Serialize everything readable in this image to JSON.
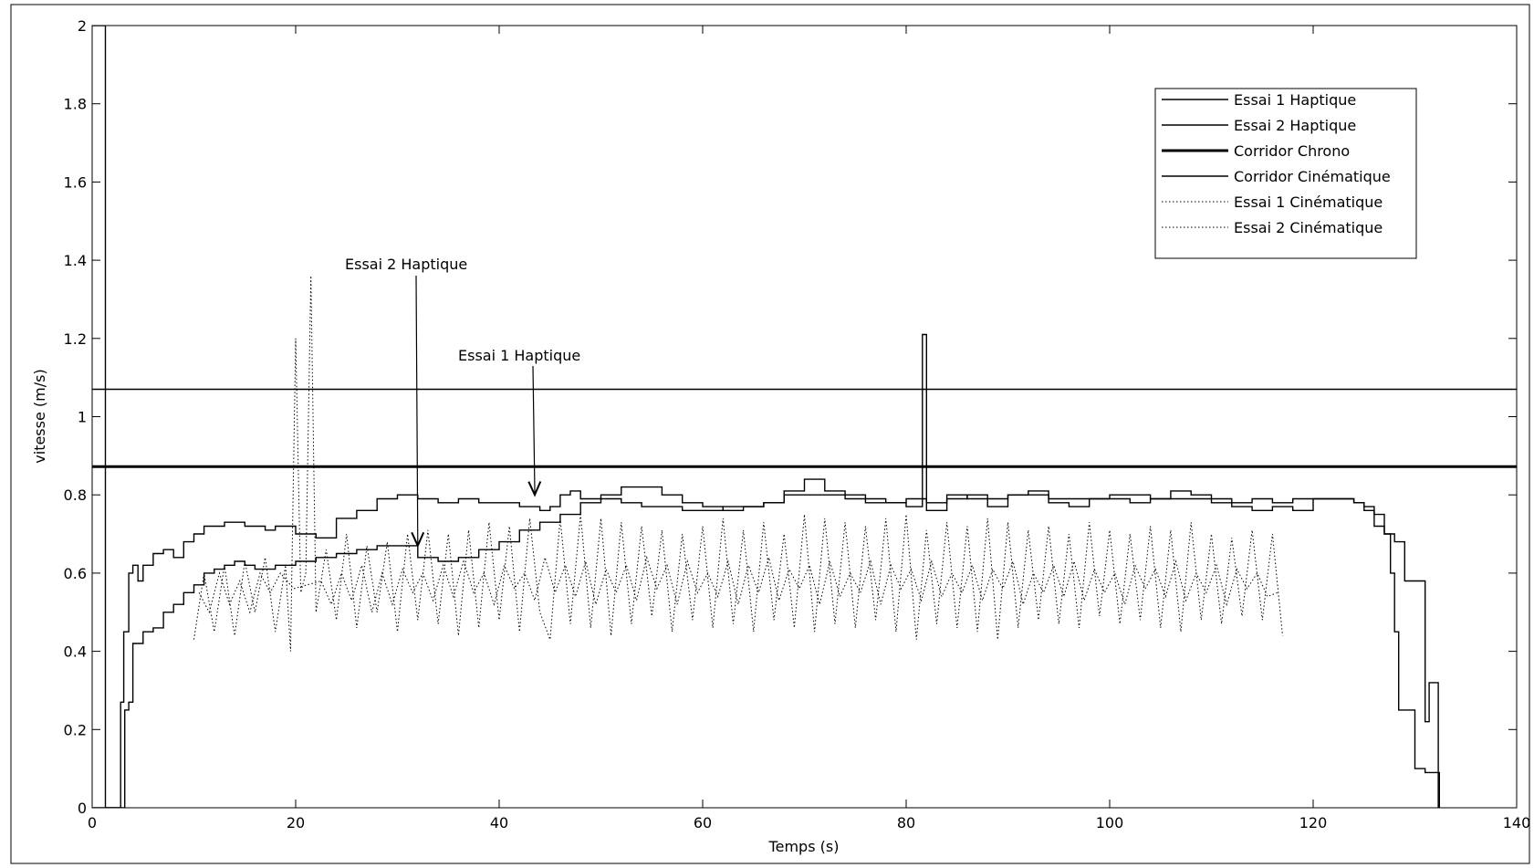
{
  "chart_data": {
    "type": "line",
    "title": "",
    "xlabel": "Temps (s)",
    "ylabel": "vitesse (m/s)",
    "xlim": [
      0,
      140
    ],
    "ylim": [
      0,
      2
    ],
    "xticks": [
      0,
      20,
      40,
      60,
      80,
      100,
      120,
      140
    ],
    "xtick_labels": [
      "0",
      "20",
      "40",
      "60",
      "80",
      "100",
      "120",
      "140"
    ],
    "yticks": [
      0,
      0.2,
      0.4,
      0.6,
      0.8,
      1,
      1.2,
      1.4,
      1.6,
      1.8,
      2
    ],
    "ytick_labels": [
      "0",
      "0.2",
      "0.4",
      "0.6",
      "0.8",
      "1",
      "1.2",
      "1.4",
      "1.6",
      "1.8",
      "2"
    ],
    "grid": false,
    "legend_position": "top-right",
    "series": [
      {
        "name": "Essai  1 Haptique",
        "style": "solid",
        "x": [
          0,
          1.2,
          1.3,
          2.6,
          2.8,
          3.1,
          3.6,
          4,
          4.5,
          5,
          6,
          7,
          8,
          9,
          10,
          11,
          12,
          13,
          14,
          15,
          16,
          17,
          18,
          19,
          20,
          22,
          24,
          26,
          28,
          30,
          32,
          34,
          36,
          38,
          40,
          42,
          44,
          45,
          46,
          47,
          48,
          50,
          52,
          54,
          56,
          58,
          60,
          62,
          64,
          66,
          68,
          70,
          72,
          74,
          76,
          78,
          80,
          82,
          84,
          86,
          88,
          90,
          92,
          94,
          96,
          98,
          100,
          102,
          104,
          106,
          108,
          110,
          112,
          114,
          116,
          118,
          120,
          122,
          124,
          125,
          126,
          127,
          127.6,
          128,
          128.4,
          129,
          130,
          131,
          132,
          132.4
        ],
        "y": [
          2,
          2,
          0,
          0,
          0.27,
          0.45,
          0.6,
          0.62,
          0.58,
          0.62,
          0.65,
          0.66,
          0.64,
          0.68,
          0.7,
          0.72,
          0.72,
          0.73,
          0.73,
          0.72,
          0.72,
          0.71,
          0.72,
          0.72,
          0.7,
          0.69,
          0.74,
          0.76,
          0.79,
          0.8,
          0.79,
          0.78,
          0.79,
          0.78,
          0.78,
          0.77,
          0.76,
          0.77,
          0.8,
          0.81,
          0.79,
          0.79,
          0.78,
          0.77,
          0.77,
          0.76,
          0.76,
          0.77,
          0.77,
          0.78,
          0.8,
          0.8,
          0.8,
          0.8,
          0.79,
          0.78,
          0.79,
          0.78,
          0.79,
          0.8,
          0.79,
          0.8,
          0.8,
          0.79,
          0.79,
          0.79,
          0.79,
          0.78,
          0.79,
          0.79,
          0.79,
          0.78,
          0.78,
          0.79,
          0.78,
          0.79,
          0.79,
          0.79,
          0.78,
          0.77,
          0.75,
          0.7,
          0.6,
          0.45,
          0.25,
          0.25,
          0.1,
          0.09,
          0.09,
          0
        ]
      },
      {
        "name": "Essai 2 Haptique",
        "style": "solid",
        "x": [
          0,
          2.6,
          3.2,
          3.6,
          4,
          5,
          6,
          7,
          8,
          9,
          10,
          11,
          12,
          13,
          14,
          15,
          16,
          17,
          18,
          19,
          20,
          22,
          24,
          26,
          28,
          30,
          32,
          34,
          36,
          38,
          40,
          42,
          44,
          46,
          48,
          50,
          52,
          54,
          56,
          58,
          60,
          62,
          64,
          66,
          68,
          70,
          72,
          74,
          76,
          78,
          80,
          81.4,
          81.6,
          82,
          84,
          86,
          88,
          90,
          92,
          94,
          96,
          98,
          100,
          102,
          104,
          106,
          108,
          110,
          112,
          114,
          116,
          118,
          120,
          122,
          124,
          125,
          126,
          127,
          128,
          129,
          130,
          131,
          131.4,
          132.3
        ],
        "y": [
          0,
          0,
          0.25,
          0.27,
          0.42,
          0.45,
          0.46,
          0.5,
          0.52,
          0.55,
          0.57,
          0.6,
          0.61,
          0.62,
          0.63,
          0.62,
          0.61,
          0.61,
          0.62,
          0.62,
          0.63,
          0.64,
          0.65,
          0.66,
          0.67,
          0.67,
          0.64,
          0.63,
          0.64,
          0.66,
          0.68,
          0.71,
          0.73,
          0.75,
          0.78,
          0.8,
          0.82,
          0.82,
          0.8,
          0.78,
          0.77,
          0.76,
          0.77,
          0.78,
          0.81,
          0.84,
          0.81,
          0.79,
          0.78,
          0.78,
          0.77,
          0.77,
          1.21,
          0.76,
          0.8,
          0.79,
          0.77,
          0.8,
          0.81,
          0.78,
          0.77,
          0.79,
          0.8,
          0.8,
          0.79,
          0.81,
          0.8,
          0.79,
          0.77,
          0.76,
          0.77,
          0.76,
          0.79,
          0.79,
          0.78,
          0.76,
          0.72,
          0.7,
          0.68,
          0.58,
          0.58,
          0.22,
          0.32,
          0
        ]
      },
      {
        "name": "Corridor Chrono",
        "style": "thick",
        "x": [
          0,
          140
        ],
        "y": [
          0.872,
          0.872
        ]
      },
      {
        "name": "Corridor Cinématique",
        "style": "solid",
        "x": [
          0,
          140
        ],
        "y": [
          1.07,
          1.07
        ]
      },
      {
        "name": "Essai 1 Cinématique",
        "style": "dotted",
        "x": [
          10,
          11,
          12,
          13,
          14,
          15,
          16,
          17,
          18,
          19,
          19.5,
          20,
          20.5,
          21,
          21.5,
          22,
          23,
          24,
          25,
          26,
          27,
          28,
          29,
          30,
          31,
          32,
          33,
          34,
          35,
          36,
          37,
          38,
          39,
          40,
          41,
          42,
          43,
          44,
          45,
          46,
          47,
          48,
          49,
          50,
          51,
          52,
          53,
          54,
          55,
          56,
          57,
          58,
          59,
          60,
          61,
          62,
          63,
          64,
          65,
          66,
          67,
          68,
          69,
          70,
          71,
          72,
          73,
          74,
          75,
          76,
          77,
          78,
          79,
          80,
          81,
          82,
          83,
          84,
          85,
          86,
          87,
          88,
          89,
          90,
          91,
          92,
          93,
          94,
          95,
          96,
          97,
          98,
          99,
          100,
          101,
          102,
          103,
          104,
          105,
          106,
          107,
          108,
          109,
          110,
          111,
          112,
          113,
          114,
          115,
          116,
          117
        ],
        "y": [
          0.43,
          0.6,
          0.45,
          0.62,
          0.44,
          0.63,
          0.5,
          0.64,
          0.45,
          0.62,
          0.4,
          1.2,
          0.55,
          0.6,
          1.36,
          0.5,
          0.66,
          0.48,
          0.7,
          0.46,
          0.67,
          0.5,
          0.68,
          0.45,
          0.7,
          0.48,
          0.71,
          0.47,
          0.7,
          0.44,
          0.71,
          0.46,
          0.73,
          0.48,
          0.72,
          0.45,
          0.74,
          0.5,
          0.43,
          0.74,
          0.47,
          0.75,
          0.46,
          0.74,
          0.44,
          0.73,
          0.47,
          0.72,
          0.49,
          0.71,
          0.45,
          0.7,
          0.48,
          0.72,
          0.46,
          0.74,
          0.47,
          0.71,
          0.45,
          0.73,
          0.48,
          0.7,
          0.46,
          0.75,
          0.45,
          0.74,
          0.47,
          0.73,
          0.46,
          0.72,
          0.48,
          0.74,
          0.45,
          0.75,
          0.43,
          0.71,
          0.47,
          0.73,
          0.46,
          0.72,
          0.45,
          0.74,
          0.43,
          0.73,
          0.46,
          0.71,
          0.48,
          0.72,
          0.47,
          0.7,
          0.46,
          0.73,
          0.49,
          0.71,
          0.47,
          0.7,
          0.48,
          0.72,
          0.46,
          0.71,
          0.45,
          0.73,
          0.48,
          0.7,
          0.47,
          0.69,
          0.49,
          0.71,
          0.48,
          0.7,
          0.44
        ]
      },
      {
        "name": "Essai 2 Cinématique",
        "style": "dotted",
        "x": [
          10.5,
          11.5,
          12.5,
          13.5,
          14.5,
          15.5,
          16.5,
          17.5,
          18.5,
          19.8,
          22.5,
          23.5,
          24.5,
          25.5,
          26.5,
          27.5,
          28.5,
          29.5,
          30.5,
          31.5,
          32.5,
          33.5,
          34.5,
          35.5,
          36.5,
          37.5,
          38.5,
          39.5,
          40.5,
          41.5,
          42.5,
          43.5,
          44.5,
          45.5,
          46.5,
          47.5,
          48.5,
          49.5,
          50.5,
          51.5,
          52.5,
          53.5,
          54.5,
          55.5,
          56.5,
          57.5,
          58.5,
          59.5,
          60.5,
          61.5,
          62.5,
          63.5,
          64.5,
          65.5,
          66.5,
          67.5,
          68.5,
          69.5,
          70.5,
          71.5,
          72.5,
          73.5,
          74.5,
          75.5,
          76.5,
          77.5,
          78.5,
          79.5,
          80.5,
          81.5,
          82.5,
          83.5,
          84.5,
          85.5,
          86.5,
          87.5,
          88.5,
          89.5,
          90.5,
          91.5,
          92.5,
          93.5,
          94.5,
          95.5,
          96.5,
          97.5,
          98.5,
          99.5,
          100.5,
          101.5,
          102.5,
          103.5,
          104.5,
          105.5,
          106.5,
          107.5,
          108.5,
          109.5,
          110.5,
          111.5,
          112.5,
          113.5,
          114.5,
          115.5,
          116.5
        ],
        "y": [
          0.55,
          0.5,
          0.6,
          0.52,
          0.58,
          0.5,
          0.6,
          0.55,
          0.6,
          0.56,
          0.58,
          0.52,
          0.6,
          0.53,
          0.62,
          0.5,
          0.6,
          0.52,
          0.61,
          0.55,
          0.6,
          0.53,
          0.62,
          0.54,
          0.63,
          0.55,
          0.6,
          0.52,
          0.62,
          0.56,
          0.6,
          0.53,
          0.64,
          0.55,
          0.62,
          0.54,
          0.63,
          0.52,
          0.61,
          0.55,
          0.62,
          0.53,
          0.64,
          0.56,
          0.62,
          0.52,
          0.63,
          0.55,
          0.6,
          0.54,
          0.63,
          0.52,
          0.62,
          0.55,
          0.64,
          0.53,
          0.61,
          0.56,
          0.62,
          0.52,
          0.63,
          0.54,
          0.6,
          0.55,
          0.63,
          0.52,
          0.62,
          0.56,
          0.61,
          0.53,
          0.63,
          0.54,
          0.6,
          0.55,
          0.62,
          0.53,
          0.61,
          0.56,
          0.63,
          0.52,
          0.6,
          0.55,
          0.62,
          0.54,
          0.63,
          0.53,
          0.61,
          0.55,
          0.6,
          0.52,
          0.62,
          0.56,
          0.61,
          0.54,
          0.63,
          0.53,
          0.6,
          0.55,
          0.62,
          0.52,
          0.61,
          0.56,
          0.6,
          0.54,
          0.55
        ]
      }
    ],
    "annotations": [
      {
        "text": "Essai 2 Haptique",
        "x": 32,
        "y": 0.67
      },
      {
        "text": "Essai 1 Haptique",
        "x": 43.5,
        "y": 0.8
      }
    ]
  }
}
